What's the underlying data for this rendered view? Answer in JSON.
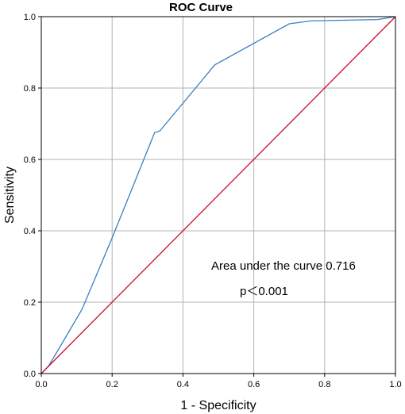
{
  "chart_data": {
    "type": "line",
    "title": "ROC Curve",
    "xlabel": "1 - Specificity",
    "ylabel": "Sensitivity",
    "xlim": [
      0.0,
      1.0
    ],
    "ylim": [
      0.0,
      1.0
    ],
    "grid": true,
    "x_ticks": [
      "0.0",
      "0.2",
      "0.4",
      "0.6",
      "0.8",
      "1.0"
    ],
    "y_ticks": [
      "0.0",
      "0.2",
      "0.4",
      "0.6",
      "0.8",
      "1.0"
    ],
    "series": [
      {
        "color": "#3a7fc1",
        "x": [
          0.0,
          0.02,
          0.05,
          0.115,
          0.2,
          0.32,
          0.335,
          0.49,
          0.7,
          0.76,
          0.95,
          1.0
        ],
        "y": [
          0.0,
          0.02,
          0.07,
          0.18,
          0.38,
          0.675,
          0.68,
          0.865,
          0.98,
          0.988,
          0.992,
          1.0
        ]
      },
      {
        "color": "#c8102e",
        "x": [
          0.0,
          1.0
        ],
        "y": [
          0.0,
          1.0
        ]
      }
    ],
    "annotations": [
      {
        "text": "Area under the curve 0.716"
      },
      {
        "text": "p＜0.001"
      }
    ]
  }
}
